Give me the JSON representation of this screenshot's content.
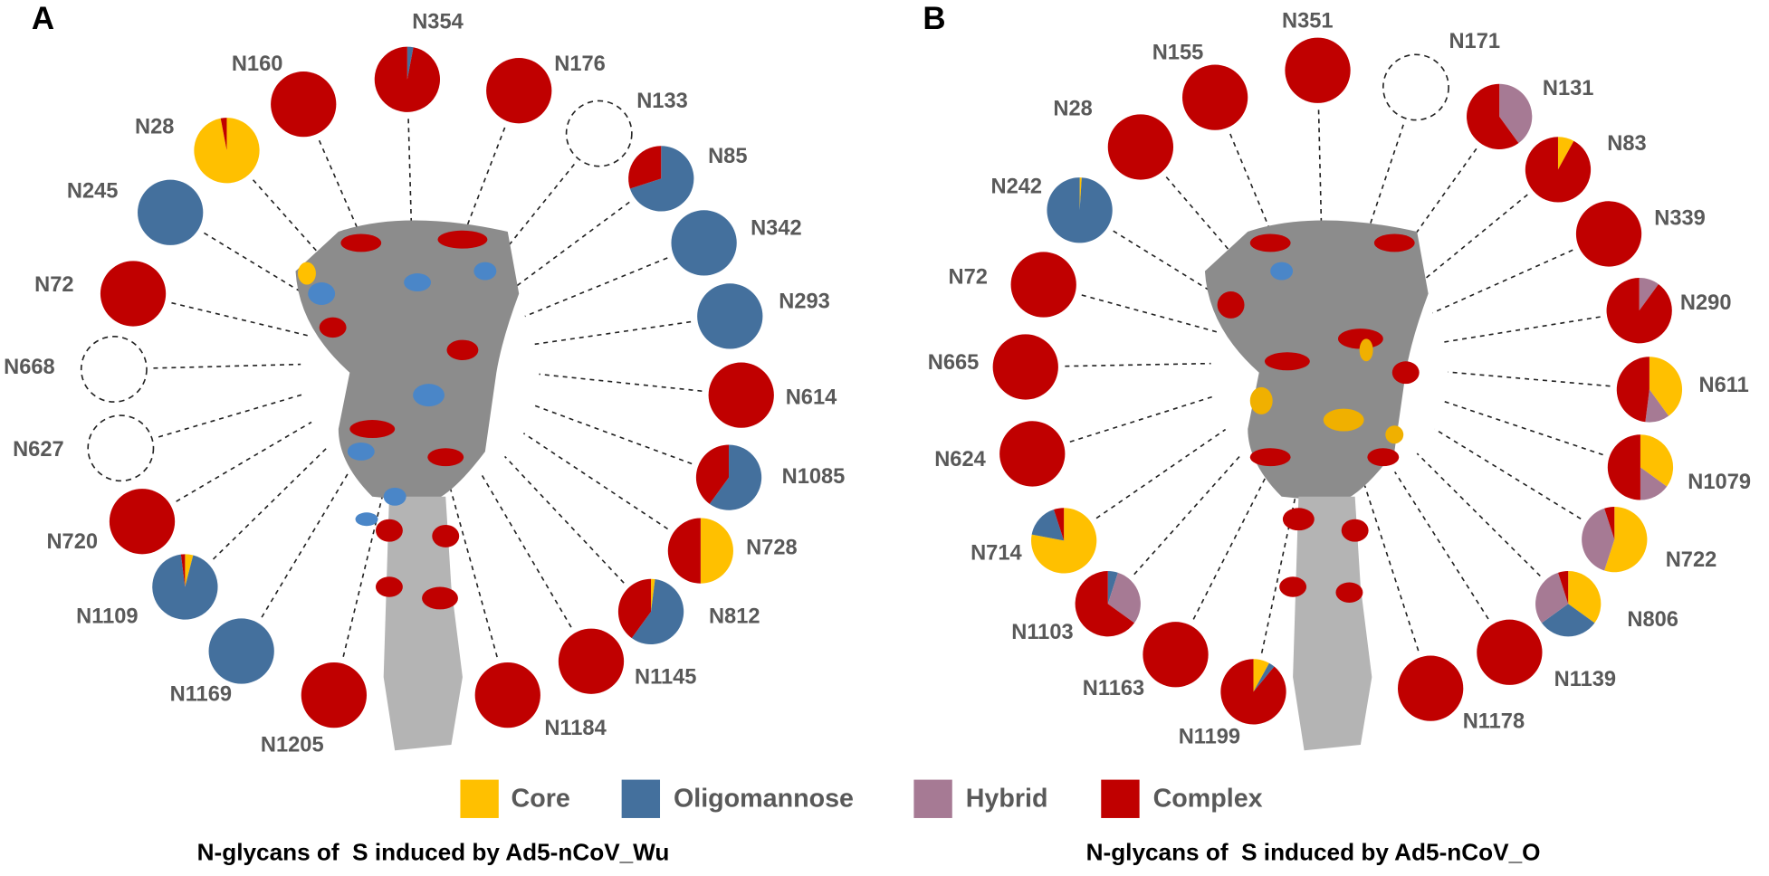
{
  "legend": {
    "categories": [
      "Core",
      "Oligomannose",
      "Hybrid",
      "Complex"
    ],
    "colors": [
      "#ffc000",
      "#44709d",
      "#a67a94",
      "#c00000"
    ]
  },
  "chart_data": [
    {
      "type": "pie",
      "panel": "A",
      "title": "N-glycans of  S induced by Ad5-nCoV_Wu",
      "pies": [
        {
          "label": "N354",
          "values": [
            0,
            3,
            0,
            97
          ]
        },
        {
          "label": "N160",
          "values": [
            0,
            0,
            0,
            100
          ]
        },
        {
          "label": "N176",
          "values": [
            0,
            0,
            0,
            100
          ]
        },
        {
          "label": "N133",
          "values": null
        },
        {
          "label": "N28",
          "values": [
            97,
            0,
            0,
            3
          ]
        },
        {
          "label": "N85",
          "values": [
            0,
            70,
            0,
            30
          ]
        },
        {
          "label": "N245",
          "values": [
            0,
            100,
            0,
            0
          ]
        },
        {
          "label": "N342",
          "values": [
            0,
            100,
            0,
            0
          ]
        },
        {
          "label": "N72",
          "values": [
            0,
            0,
            0,
            100
          ]
        },
        {
          "label": "N293",
          "values": [
            0,
            100,
            0,
            0
          ]
        },
        {
          "label": "N668",
          "values": null
        },
        {
          "label": "N614",
          "values": [
            0,
            0,
            0,
            100
          ]
        },
        {
          "label": "N627",
          "values": null
        },
        {
          "label": "N1085",
          "values": [
            0,
            60,
            0,
            40
          ]
        },
        {
          "label": "N720",
          "values": [
            0,
            0,
            0,
            100
          ]
        },
        {
          "label": "N728",
          "values": [
            50,
            0,
            0,
            50
          ]
        },
        {
          "label": "N1109",
          "values": [
            4,
            94,
            0,
            2
          ]
        },
        {
          "label": "N812",
          "values": [
            2,
            58,
            0,
            40
          ]
        },
        {
          "label": "N1169",
          "values": [
            0,
            100,
            0,
            0
          ]
        },
        {
          "label": "N1145",
          "values": [
            0,
            0,
            0,
            100
          ]
        },
        {
          "label": "N1205",
          "values": [
            0,
            0,
            0,
            100
          ]
        },
        {
          "label": "N1184",
          "values": [
            0,
            0,
            0,
            100
          ]
        }
      ]
    },
    {
      "type": "pie",
      "panel": "B",
      "title": "N-glycans of  S induced by Ad5-nCoV_O",
      "pies": [
        {
          "label": "N351",
          "values": [
            0,
            0,
            0,
            100
          ]
        },
        {
          "label": "N155",
          "values": [
            0,
            0,
            0,
            100
          ]
        },
        {
          "label": "N171",
          "values": null
        },
        {
          "label": "N28",
          "values": [
            0,
            0,
            0,
            100
          ]
        },
        {
          "label": "N131",
          "values": [
            0,
            0,
            40,
            60
          ]
        },
        {
          "label": "N83",
          "values": [
            8,
            0,
            0,
            92
          ]
        },
        {
          "label": "N242",
          "values": [
            1,
            99,
            0,
            0
          ]
        },
        {
          "label": "N339",
          "values": [
            0,
            0,
            0,
            100
          ]
        },
        {
          "label": "N72",
          "values": [
            0,
            0,
            0,
            100
          ]
        },
        {
          "label": "N290",
          "values": [
            0,
            0,
            10,
            90
          ]
        },
        {
          "label": "N665",
          "values": [
            0,
            0,
            0,
            100
          ]
        },
        {
          "label": "N611",
          "values": [
            40,
            0,
            12,
            48
          ]
        },
        {
          "label": "N624",
          "values": [
            0,
            0,
            0,
            100
          ]
        },
        {
          "label": "N1079",
          "values": [
            35,
            0,
            15,
            50
          ]
        },
        {
          "label": "N714",
          "values": [
            78,
            17,
            0,
            5
          ]
        },
        {
          "label": "N722",
          "values": [
            55,
            0,
            40,
            5
          ]
        },
        {
          "label": "N1103",
          "values": [
            0,
            5,
            30,
            65
          ]
        },
        {
          "label": "N806",
          "values": [
            35,
            30,
            30,
            5
          ]
        },
        {
          "label": "N1163",
          "values": [
            0,
            0,
            0,
            100
          ]
        },
        {
          "label": "N1139",
          "values": [
            0,
            0,
            0,
            100
          ]
        },
        {
          "label": "N1199",
          "values": [
            8,
            3,
            0,
            89
          ]
        },
        {
          "label": "N1178",
          "values": [
            0,
            0,
            0,
            100
          ]
        }
      ]
    }
  ]
}
